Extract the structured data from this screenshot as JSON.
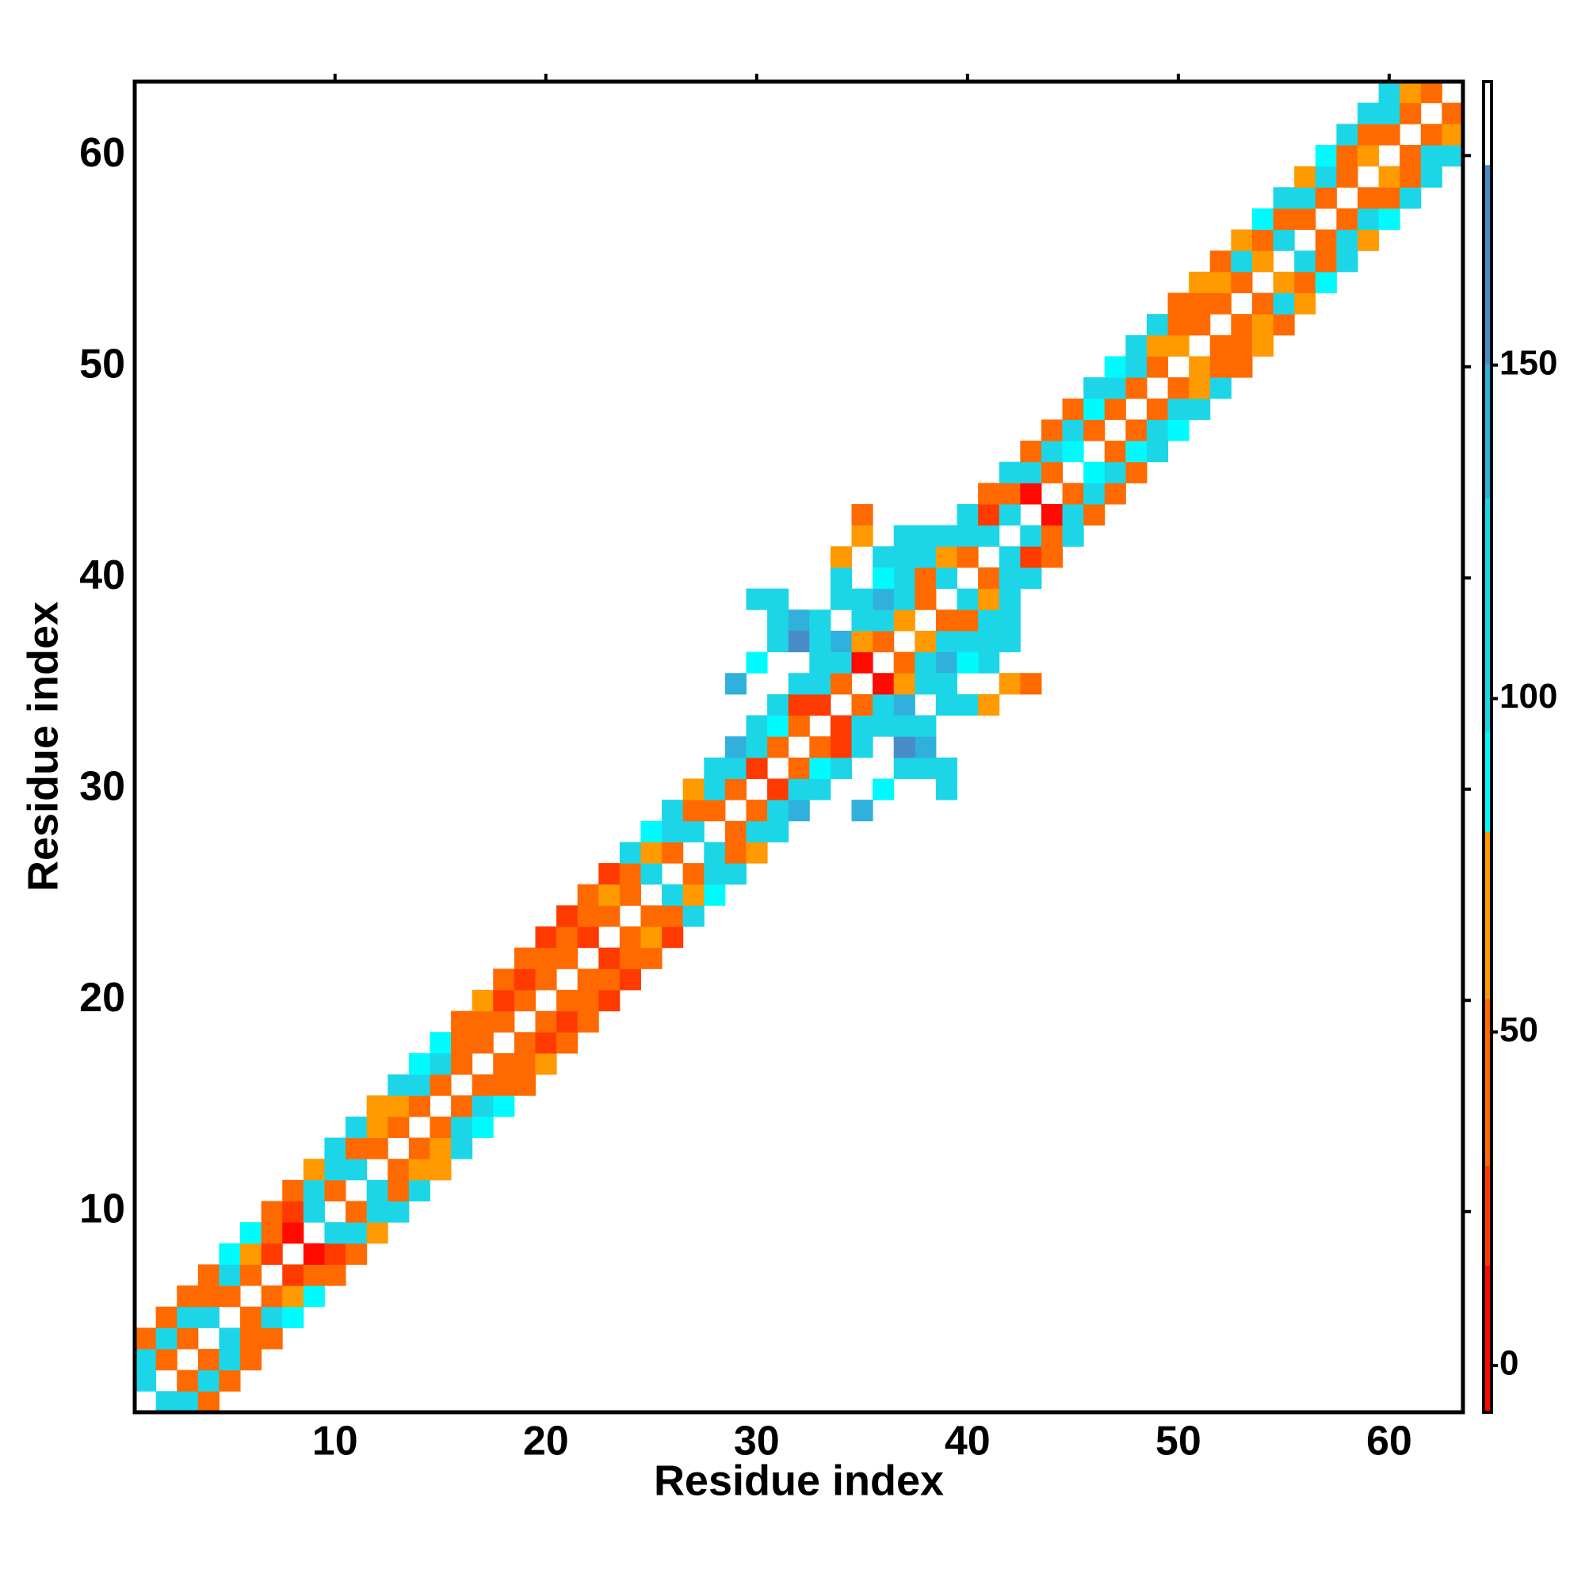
{
  "chart_data": {
    "type": "heatmap",
    "symmetric": true,
    "x_label": "Residue index",
    "y_label": "Residue index",
    "xlim": [
      0.5,
      63.5
    ],
    "ylim": [
      0.5,
      63.5
    ],
    "xticks": [
      10,
      20,
      30,
      40,
      50,
      60
    ],
    "yticks": [
      10,
      20,
      30,
      40,
      50,
      60
    ],
    "clim": [
      -7,
      192.5
    ],
    "cticks": [
      0,
      50,
      100,
      150
    ],
    "colorscale": [
      {
        "value": -7,
        "color": "#ff0a00"
      },
      {
        "value": 15,
        "color": "#ff3a00"
      },
      {
        "value": 30,
        "color": "#ff6a00"
      },
      {
        "value": 55,
        "color": "#ff9a00"
      },
      {
        "value": 80,
        "color": "#00fbff"
      },
      {
        "value": 95,
        "color": "#1cd6e8"
      },
      {
        "value": 130,
        "color": "#30b0dc"
      },
      {
        "value": 150,
        "color": "#4a8cc8"
      },
      {
        "value": 180,
        "color": "#ffffff"
      }
    ],
    "x": [
      1,
      1,
      1,
      2,
      2,
      2,
      3,
      3,
      3,
      4,
      4,
      4,
      5,
      5,
      5,
      6,
      6,
      6,
      7,
      7,
      7,
      8,
      8,
      8,
      9,
      9,
      9,
      10,
      10,
      10,
      11,
      11,
      11,
      12,
      12,
      12,
      13,
      13,
      13,
      14,
      14,
      14,
      15,
      15,
      15,
      16,
      16,
      16,
      17,
      17,
      17,
      18,
      18,
      18,
      19,
      19,
      19,
      20,
      20,
      20,
      21,
      21,
      21,
      22,
      22,
      22,
      23,
      23,
      23,
      24,
      24,
      24,
      25,
      25,
      25,
      26,
      26,
      26,
      27,
      27,
      27,
      28,
      28,
      28,
      29,
      29,
      29,
      30,
      30,
      30,
      31,
      31,
      31,
      32,
      32,
      32,
      33,
      33,
      33,
      34,
      34,
      34,
      35,
      35,
      35,
      36,
      36,
      36,
      37,
      37,
      37,
      38,
      38,
      38,
      39,
      39,
      39,
      40,
      40,
      40,
      41,
      41,
      41,
      42,
      42,
      42,
      43,
      43,
      43,
      44,
      44,
      44,
      45,
      45,
      45,
      46,
      46,
      46,
      47,
      47,
      47,
      48,
      48,
      48,
      49,
      49,
      49,
      50,
      50,
      50,
      51,
      51,
      51,
      52,
      52,
      52,
      53,
      53,
      53,
      54,
      54,
      54,
      55,
      55,
      55,
      56,
      56,
      56,
      57,
      57,
      57,
      58,
      58,
      58,
      59,
      59,
      59,
      60,
      60,
      60,
      61,
      61,
      62,
      29,
      30,
      31,
      31,
      30,
      31,
      32,
      32,
      33,
      34,
      35,
      34,
      35,
      36,
      37,
      34,
      35,
      33,
      36,
      37,
      38
    ],
    "y": [
      2,
      3,
      4,
      3,
      4,
      5,
      4,
      5,
      6,
      5,
      6,
      7,
      6,
      7,
      8,
      7,
      8,
      9,
      8,
      9,
      10,
      9,
      10,
      11,
      10,
      11,
      12,
      11,
      12,
      13,
      12,
      13,
      14,
      13,
      14,
      15,
      14,
      15,
      16,
      15,
      16,
      17,
      16,
      17,
      18,
      17,
      18,
      19,
      18,
      19,
      20,
      19,
      20,
      21,
      20,
      21,
      22,
      21,
      22,
      23,
      22,
      23,
      24,
      23,
      24,
      25,
      24,
      25,
      26,
      25,
      26,
      27,
      26,
      27,
      28,
      27,
      28,
      29,
      28,
      29,
      30,
      29,
      30,
      31,
      30,
      31,
      32,
      31,
      32,
      33,
      32,
      33,
      34,
      33,
      34,
      35,
      34,
      35,
      36,
      35,
      36,
      37,
      36,
      37,
      38,
      37,
      38,
      39,
      38,
      39,
      40,
      39,
      40,
      41,
      40,
      41,
      42,
      41,
      42,
      43,
      42,
      43,
      44,
      43,
      44,
      45,
      44,
      45,
      46,
      45,
      46,
      47,
      46,
      47,
      48,
      47,
      48,
      49,
      48,
      49,
      50,
      49,
      50,
      51,
      50,
      51,
      52,
      51,
      52,
      53,
      52,
      53,
      54,
      53,
      54,
      55,
      54,
      55,
      56,
      55,
      56,
      57,
      56,
      57,
      58,
      57,
      58,
      59,
      58,
      59,
      60,
      59,
      60,
      61,
      60,
      61,
      62,
      61,
      62,
      63,
      62,
      63,
      63,
      35,
      36,
      37,
      38,
      39,
      39,
      38,
      37,
      37,
      40,
      42,
      39,
      39,
      41,
      42,
      41,
      43,
      38,
      40,
      41,
      42
    ],
    "values": [
      100,
      100,
      50,
      50,
      100,
      50,
      50,
      100,
      50,
      100,
      50,
      50,
      50,
      100,
      90,
      50,
      60,
      90,
      20,
      40,
      50,
      10,
      20,
      40,
      100,
      100,
      60,
      50,
      100,
      100,
      100,
      50,
      100,
      50,
      60,
      65,
      40,
      65,
      100,
      45,
      100,
      90,
      45,
      100,
      90,
      50,
      40,
      45,
      50,
      40,
      65,
      45,
      20,
      45,
      40,
      25,
      45,
      30,
      45,
      20,
      30,
      45,
      25,
      20,
      45,
      30,
      30,
      60,
      20,
      50,
      40,
      100,
      100,
      60,
      90,
      40,
      110,
      100,
      110,
      45,
      70,
      30,
      100,
      110,
      45,
      105,
      140,
      25,
      100,
      105,
      30,
      90,
      110,
      40,
      25,
      105,
      20,
      110,
      100,
      40,
      100,
      140,
      10,
      65,
      100,
      45,
      100,
      130,
      60,
      110,
      100,
      45,
      40,
      110,
      100,
      60,
      110,
      50,
      110,
      105,
      110,
      15,
      40,
      100,
      40,
      105,
      10,
      100,
      45,
      40,
      100,
      45,
      90,
      100,
      40,
      40,
      90,
      100,
      45,
      100,
      90,
      50,
      100,
      110,
      45,
      70,
      100,
      60,
      45,
      40,
      45,
      40,
      60,
      40,
      60,
      40,
      45,
      100,
      60,
      60,
      40,
      90,
      100,
      50,
      100,
      50,
      100,
      60,
      45,
      100,
      90,
      40,
      45,
      100,
      65,
      50,
      100,
      40,
      100,
      110,
      50,
      70,
      50,
      140,
      90,
      110,
      100,
      110,
      110,
      140,
      150,
      110,
      100,
      65,
      100,
      110,
      100,
      105,
      60,
      45,
      110,
      90,
      110,
      110
    ]
  }
}
